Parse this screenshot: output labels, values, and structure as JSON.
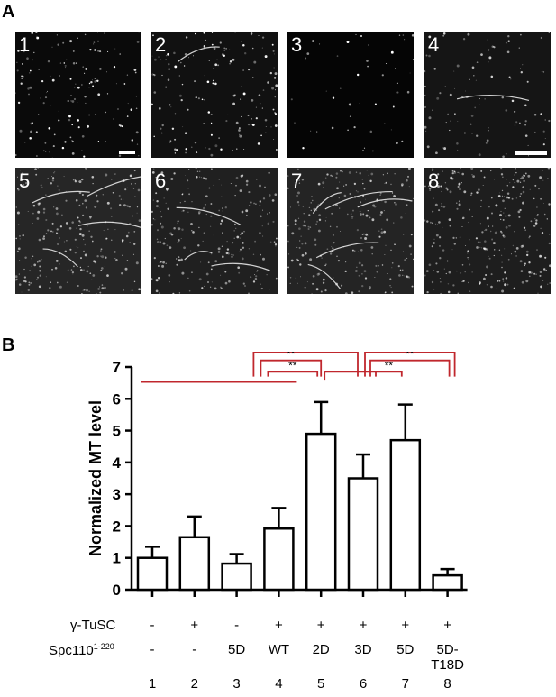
{
  "panels": {
    "a_label": "A",
    "b_label": "B",
    "micrographs": [
      {
        "number": "1"
      },
      {
        "number": "2"
      },
      {
        "number": "3"
      },
      {
        "number": "4"
      },
      {
        "number": "5"
      },
      {
        "number": "6"
      },
      {
        "number": "7"
      },
      {
        "number": "8"
      }
    ]
  },
  "chart_data": {
    "type": "bar",
    "ylabel": "Normalized MT level",
    "ylim": [
      0,
      7
    ],
    "yticks": [
      0,
      1,
      2,
      3,
      4,
      5,
      6,
      7
    ],
    "categories": [
      "1",
      "2",
      "3",
      "4",
      "5",
      "6",
      "7",
      "8"
    ],
    "values": [
      1.0,
      1.65,
      0.82,
      1.92,
      4.9,
      3.5,
      4.7,
      0.45
    ],
    "errors": [
      0.35,
      0.65,
      0.3,
      0.65,
      1.0,
      0.75,
      1.12,
      0.2
    ],
    "bar_fill": "#ffffff",
    "bar_stroke": "#000000",
    "significance_color": "#c0272d",
    "significance": [
      {
        "from": "4",
        "to": "6",
        "label": "*"
      },
      {
        "from": "4",
        "to": "5",
        "label": "**"
      },
      {
        "from": "4",
        "to": "5",
        "label": "**"
      },
      {
        "from": "6",
        "to": "8",
        "label": "*"
      },
      {
        "from": "6",
        "to": "8",
        "label": "**"
      },
      {
        "from": "6",
        "to": "7",
        "label": "**"
      }
    ]
  },
  "conditions": {
    "gamma_label": "γ-TuSC",
    "gamma_values": [
      "-",
      "+",
      "-",
      "+",
      "+",
      "+",
      "+",
      "+"
    ],
    "spc_label_main": "Spc110",
    "spc_label_sup": "1-220",
    "spc_values": [
      "-",
      "-",
      "5D",
      "WT",
      "2D",
      "3D",
      "5D",
      "5D-T18D"
    ],
    "lane_numbers": [
      "1",
      "2",
      "3",
      "4",
      "5",
      "6",
      "7",
      "8"
    ]
  }
}
